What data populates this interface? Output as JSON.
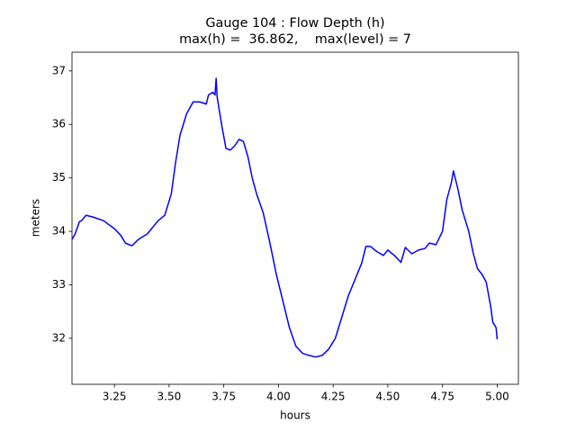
{
  "chart_data": {
    "type": "line",
    "title": "Gauge 104 : Flow Depth (h)",
    "subtitle": "max(h) =  36.862,    max(level) = 7",
    "xlabel": "hours",
    "ylabel": "meters",
    "color": "#0000ff",
    "grid": false,
    "xlim": [
      3.056,
      5.097
    ],
    "ylim": [
      31.14,
      37.35
    ],
    "xticks": [
      3.25,
      {
        "value": 3.5,
        "label": "3.50"
      },
      3.75,
      {
        "value": 4.0,
        "label": "4.00"
      },
      4.25,
      {
        "value": 4.5,
        "label": "4.50"
      },
      4.75,
      {
        "value": 5.0,
        "label": "5.00"
      }
    ],
    "yticks": [
      32,
      33,
      34,
      35,
      36,
      37
    ],
    "x": [
      3.056,
      3.07,
      3.09,
      3.1,
      3.12,
      3.15,
      3.2,
      3.25,
      3.28,
      3.3,
      3.33,
      3.36,
      3.4,
      3.45,
      3.48,
      3.51,
      3.53,
      3.55,
      3.58,
      3.61,
      3.64,
      3.67,
      3.68,
      3.7,
      3.71,
      3.715,
      3.72,
      3.74,
      3.76,
      3.78,
      3.8,
      3.82,
      3.84,
      3.86,
      3.88,
      3.9,
      3.93,
      3.96,
      3.99,
      4.02,
      4.05,
      4.08,
      4.11,
      4.14,
      4.17,
      4.2,
      4.23,
      4.26,
      4.29,
      4.32,
      4.35,
      4.38,
      4.4,
      4.42,
      4.45,
      4.48,
      4.5,
      4.53,
      4.56,
      4.58,
      4.61,
      4.64,
      4.67,
      4.69,
      4.72,
      4.75,
      4.77,
      4.79,
      4.8,
      4.82,
      4.84,
      4.87,
      4.89,
      4.91,
      4.93,
      4.95,
      4.97,
      4.98,
      4.995,
      5.0
    ],
    "values": [
      33.85,
      33.95,
      34.18,
      34.2,
      34.3,
      34.27,
      34.2,
      34.05,
      33.92,
      33.78,
      33.73,
      33.85,
      33.95,
      34.2,
      34.3,
      34.7,
      35.3,
      35.8,
      36.2,
      36.42,
      36.42,
      36.38,
      36.55,
      36.6,
      36.55,
      36.862,
      36.5,
      36.0,
      35.55,
      35.52,
      35.6,
      35.72,
      35.68,
      35.4,
      35.0,
      34.7,
      34.35,
      33.8,
      33.2,
      32.7,
      32.2,
      31.85,
      31.72,
      31.68,
      31.65,
      31.68,
      31.8,
      32.0,
      32.4,
      32.8,
      33.1,
      33.4,
      33.72,
      33.72,
      33.62,
      33.55,
      33.65,
      33.55,
      33.42,
      33.7,
      33.58,
      33.65,
      33.68,
      33.78,
      33.75,
      34.0,
      34.6,
      34.9,
      35.13,
      34.8,
      34.4,
      34.0,
      33.6,
      33.3,
      33.2,
      33.05,
      32.6,
      32.3,
      32.2,
      31.98
    ]
  }
}
